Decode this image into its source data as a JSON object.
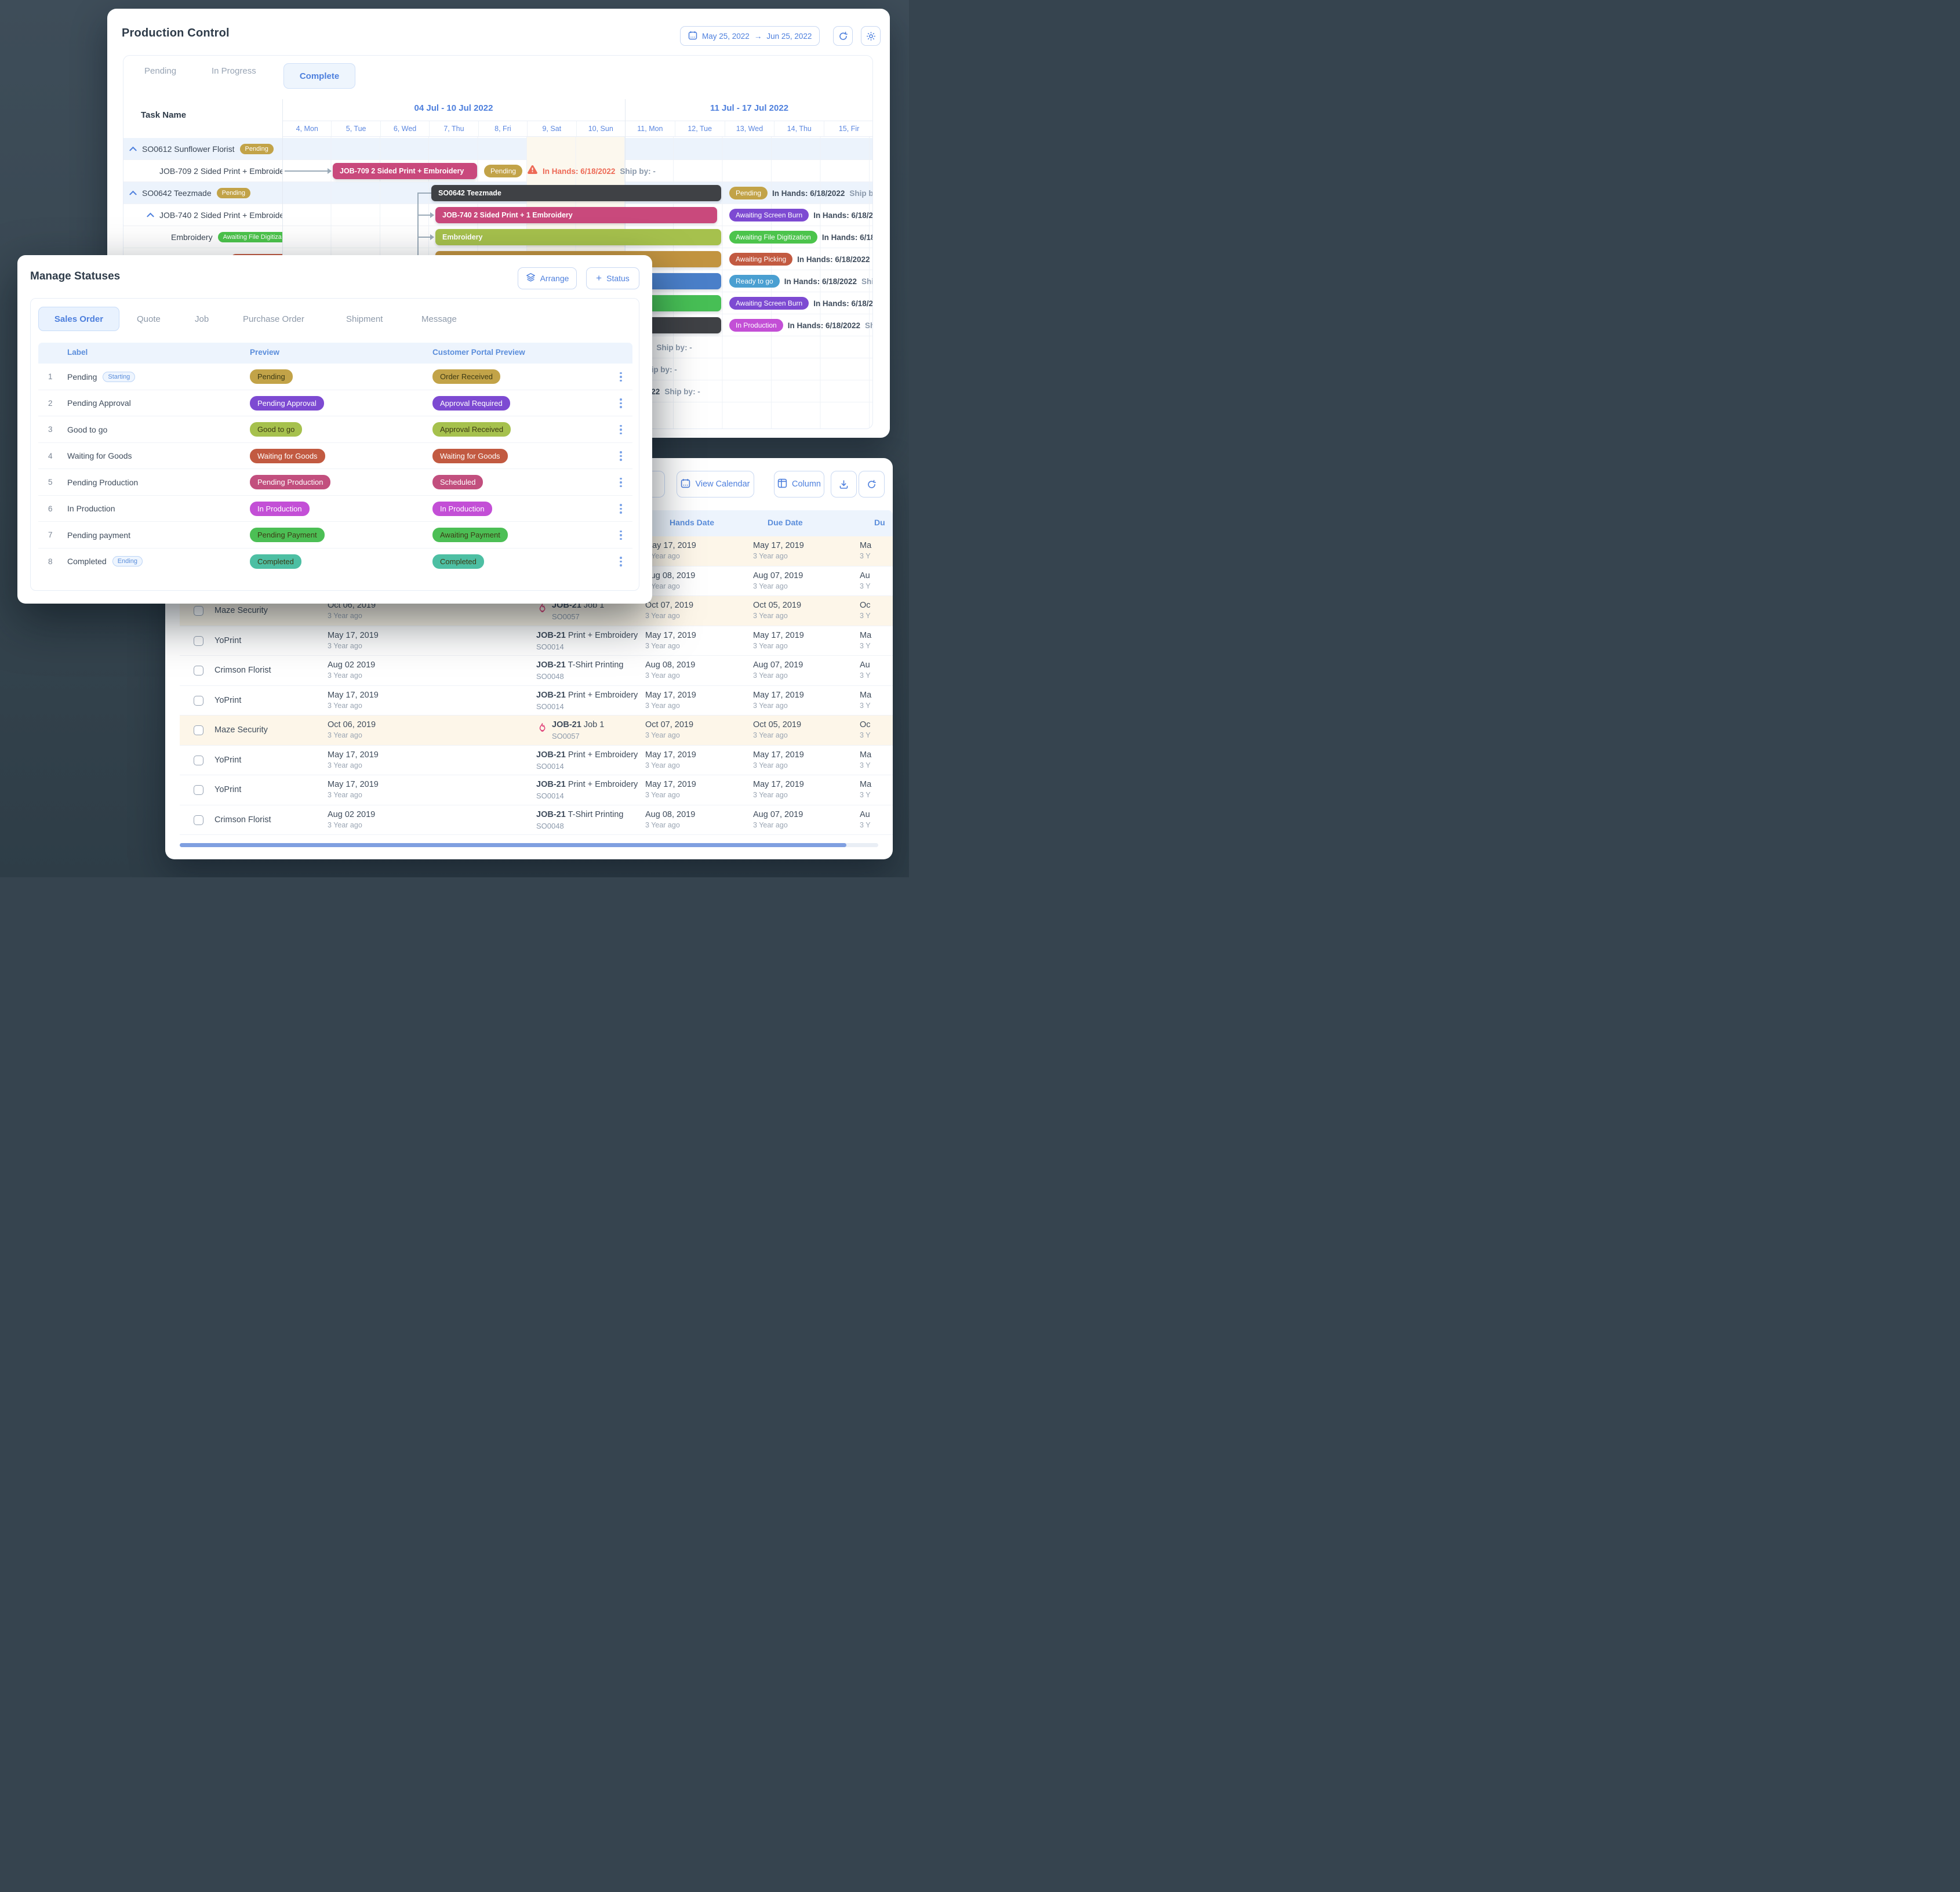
{
  "colors": {
    "accent": "#4d7fdd",
    "gold": "#c2a348",
    "purple": "#7d4ad2",
    "lightgreen": "#4cc44c",
    "yellowgreen": "#a6c14d",
    "rust": "#c25a41",
    "status_blue": "#4a9fd1",
    "magenta": "#c34fd6",
    "pink": "#c9497c",
    "pink_dark": "#c24f7e",
    "dark_bar": "#3f4145",
    "ochre": "#c29440",
    "bar_blue": "#4a7fc9",
    "green": "#47bf55",
    "teal": "#4dbfa3",
    "warn_red": "#ed6a56"
  },
  "production_control": {
    "title": "Production Control",
    "date_range": {
      "start": "May 25, 2022",
      "end": "Jun 25, 2022"
    },
    "tabs": {
      "pending": "Pending",
      "in_progress": "In Progress",
      "complete": "Complete"
    },
    "gantt": {
      "task_col": "Task Name",
      "week1": {
        "label": "04 Jul - 10 Jul 2022",
        "days": [
          "4, Mon",
          "5, Tue",
          "6, Wed",
          "7, Thu",
          "8, Fri",
          "9, Sat",
          "10, Sun"
        ]
      },
      "week2": {
        "label": "11 Jul - 17 Jul 2022",
        "days": [
          "11, Mon",
          "12, Tue",
          "13, Wed",
          "14, Thu",
          "15, Fir"
        ]
      },
      "in_hands": "In Hands: 6/18/2022",
      "ship_by": "Ship by: -",
      "rows": {
        "r1": {
          "label": "SO0612 Sunflower Florist",
          "badge": "Pending"
        },
        "r2": {
          "label": "JOB-709 2 Sided Print + Embroide",
          "bar": "JOB-709 2 Sided Print + Embroidery",
          "status": "Pending"
        },
        "r3": {
          "label": "SO0642 Teezmade",
          "badge": "Pending",
          "bar": "SO0642 Teezmade",
          "status": "Pending"
        },
        "r4": {
          "label": "JOB-740 2 Sided Print + Embroide",
          "bar": "JOB-740 2 Sided Print + 1 Embroidery",
          "status": "Awaiting Screen Burn"
        },
        "r5": {
          "label": "Embroidery",
          "badge": "Awaiting File Digitiza",
          "bar": "Embroidery",
          "status": "Awaiting File Digitization"
        },
        "r6": {
          "badge": "Awaiting Picking",
          "status": "Awaiting Picking"
        },
        "r7": {
          "status": "Ready to go"
        },
        "r8": {
          "status": "Awaiting Screen Burn"
        },
        "r9": {
          "status": "In Production"
        }
      }
    }
  },
  "manage_statuses": {
    "title": "Manage Statuses",
    "arrange_label": "Arrange",
    "add_status_label": "Status",
    "tabs": [
      "Sales Order",
      "Quote",
      "Job",
      "Purchase Order",
      "Shipment",
      "Message"
    ],
    "columns": {
      "label": "Label",
      "preview": "Preview",
      "portal": "Customer Portal Preview"
    },
    "rows": [
      {
        "num": "1",
        "label": "Pending",
        "tag": "Starting",
        "preview": "Pending",
        "portal": "Order Received",
        "color": "#c2a348",
        "text_dark": true
      },
      {
        "num": "2",
        "label": "Pending Approval",
        "preview": "Pending Approval",
        "portal": "Approval Required",
        "color": "#7d4ad2"
      },
      {
        "num": "3",
        "label": "Good to go",
        "preview": "Good to go",
        "portal": "Approval Received",
        "color": "#a6c14d",
        "text_dark": true
      },
      {
        "num": "4",
        "label": "Waiting for Goods",
        "preview": "Waiting for Goods",
        "portal": "Waiting for Goods",
        "color": "#c25a41"
      },
      {
        "num": "5",
        "label": "Pending Production",
        "preview": "Pending Production",
        "portal": "Scheduled",
        "color": "#c24f7e"
      },
      {
        "num": "6",
        "label": "In Production",
        "preview": "In Production",
        "portal": "In Production",
        "color": "#c34fd6"
      },
      {
        "num": "7",
        "label": "Pending payment",
        "preview": "Pending Payment",
        "portal": "Awaiting Payment",
        "color": "#4cbf55",
        "text_dark": true
      },
      {
        "num": "8",
        "label": "Completed",
        "tag": "Ending",
        "preview": "Completed",
        "portal": "Completed",
        "color": "#4dbfa3",
        "text_dark": true
      }
    ]
  },
  "orders": {
    "toolbar": {
      "view_calendar": "View Calendar",
      "column": "Column"
    },
    "columns": {
      "hands": "Hands Date",
      "due": "Due Date",
      "due2": "Du"
    },
    "rows": [
      {
        "beige": true,
        "hands": "May 17, 2019",
        "due": "May 17, 2019",
        "du": "Ma",
        "ago": "3 Year ago",
        "ago_short": "3 Y"
      },
      {
        "hands": "Aug 08, 2019",
        "due": "Aug 07, 2019",
        "du": "Au",
        "ago": "3 Year ago",
        "ago_short": "3 Y"
      },
      {
        "beige": true,
        "rush": true,
        "customer": "Maze Security",
        "date": "Oct 06, 2019",
        "avatars": [
          "navy",
          "green"
        ],
        "job_code": "JOB-21",
        "job_desc": "Job 1",
        "so": "SO0057",
        "hands": "Oct 07, 2019",
        "due": "Oct 05, 2019",
        "du": "Oc",
        "ago": "3 Year ago",
        "ago_short": "3 Y"
      },
      {
        "customer": "YoPrint",
        "date": "May 17, 2019",
        "avatars": [
          "navy",
          "dark",
          "green"
        ],
        "job_code": "JOB-21",
        "job_desc": "Print + Embroidery",
        "so": "SO0014",
        "hands": "May 17, 2019",
        "due": "May 17, 2019",
        "du": "Ma",
        "ago": "3 Year ago",
        "ago_short": "3 Y"
      },
      {
        "customer": "Crimson Florist",
        "date": "Aug 02 2019",
        "avatars": [
          "navy"
        ],
        "job_code": "JOB-21",
        "job_desc": "T-Shirt Printing",
        "so": "SO0048",
        "hands": "Aug 08, 2019",
        "due": "Aug 07, 2019",
        "du": "Au",
        "ago": "3 Year ago",
        "ago_short": "3 Y"
      },
      {
        "customer": "YoPrint",
        "date": "May 17, 2019",
        "avatars": [
          "navy",
          "dark",
          "green"
        ],
        "job_code": "JOB-21",
        "job_desc": "Print + Embroidery",
        "so": "SO0014",
        "hands": "May 17, 2019",
        "due": "May 17, 2019",
        "du": "Ma",
        "ago": "3 Year ago",
        "ago_short": "3 Y"
      },
      {
        "beige": true,
        "rush": true,
        "customer": "Maze Security",
        "date": "Oct 06, 2019",
        "avatars": [
          "navy",
          "green"
        ],
        "job_code": "JOB-21",
        "job_desc": "Job 1",
        "so": "SO0057",
        "hands": "Oct 07, 2019",
        "due": "Oct 05, 2019",
        "du": "Oc",
        "ago": "3 Year ago",
        "ago_short": "3 Y"
      },
      {
        "customer": "YoPrint",
        "date": "May 17, 2019",
        "avatars": [
          "navy",
          "dark",
          "green"
        ],
        "job_code": "JOB-21",
        "job_desc": "Print + Embroidery",
        "so": "SO0014",
        "hands": "May 17, 2019",
        "due": "May 17, 2019",
        "du": "Ma",
        "ago": "3 Year ago",
        "ago_short": "3 Y"
      },
      {
        "customer": "YoPrint",
        "date": "May 17, 2019",
        "avatars": [
          "navy",
          "dark",
          "green"
        ],
        "job_code": "JOB-21",
        "job_desc": "Print + Embroidery",
        "so": "SO0014",
        "hands": "May 17, 2019",
        "due": "May 17, 2019",
        "du": "Ma",
        "ago": "3 Year ago",
        "ago_short": "3 Y"
      },
      {
        "customer": "Crimson Florist",
        "date": "Aug 02 2019",
        "avatars": [
          "navy"
        ],
        "job_code": "JOB-21",
        "job_desc": "T-Shirt Printing",
        "so": "SO0048",
        "hands": "Aug 08, 2019",
        "due": "Aug 07, 2019",
        "du": "Au",
        "ago": "3 Year ago",
        "ago_short": "3 Y"
      }
    ]
  }
}
